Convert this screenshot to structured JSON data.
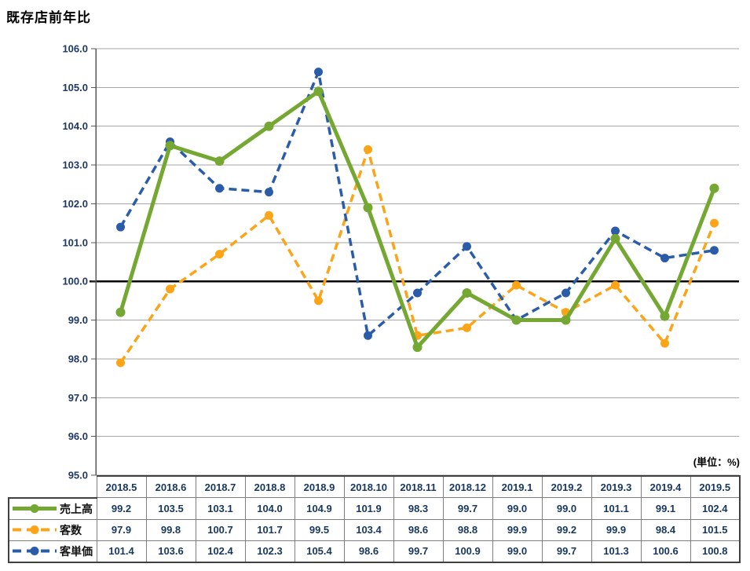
{
  "title": "既存店前年比",
  "unit_label": "(単位：%)",
  "chart_data": {
    "type": "line",
    "title": "既存店前年比",
    "unit": "%",
    "categories": [
      "2018.5",
      "2018.6",
      "2018.7",
      "2018.8",
      "2018.9",
      "2018.10",
      "2018.11",
      "2018.12",
      "2019.1",
      "2019.2",
      "2019.3",
      "2019.4",
      "2019.5"
    ],
    "series": [
      {
        "key": "sales",
        "name": "売上高",
        "style": "solid",
        "color": "#74A832",
        "z": 3,
        "values": [
          99.2,
          103.5,
          103.1,
          104.0,
          104.9,
          101.9,
          98.3,
          99.7,
          99.0,
          99.0,
          101.1,
          99.1,
          102.4
        ]
      },
      {
        "key": "customers",
        "name": "客数",
        "style": "dashed",
        "color": "#FCA418",
        "z": 1,
        "values": [
          97.9,
          99.8,
          100.7,
          101.7,
          99.5,
          103.4,
          98.6,
          98.8,
          99.9,
          99.2,
          99.9,
          98.4,
          101.5
        ]
      },
      {
        "key": "spend",
        "name": "客単価",
        "style": "dashed",
        "color": "#2A5CAA",
        "z": 2,
        "values": [
          101.4,
          103.6,
          102.4,
          102.3,
          105.4,
          98.6,
          99.7,
          100.9,
          99.0,
          99.7,
          101.3,
          100.6,
          100.8
        ]
      }
    ],
    "ylim": [
      95.0,
      106.0
    ],
    "ytick_step": 1.0,
    "yticks": [
      106.0,
      105.0,
      104.0,
      103.0,
      102.0,
      101.0,
      100.0,
      99.0,
      98.0,
      97.0,
      96.0,
      95.0
    ],
    "baseline": 100.0,
    "grid": true,
    "legend_position": "table-left",
    "colors": {
      "grid": "#A6A6A6",
      "axis": "#595959",
      "baseline": "#000000",
      "tick_label_text": "#1F3864",
      "table_text": "#17375E",
      "cell_border": "#7F7F7F"
    }
  }
}
